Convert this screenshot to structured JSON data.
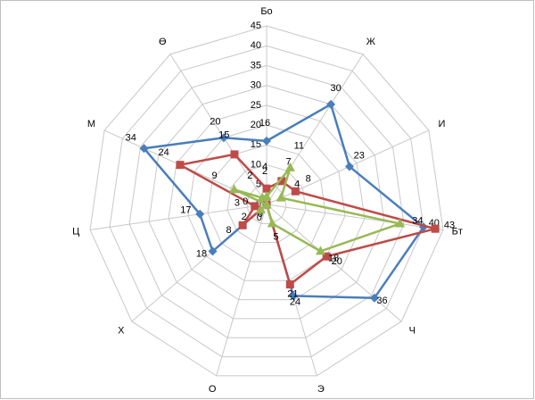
{
  "chart_data": {
    "type": "radar",
    "categories": [
      "Бо",
      "Ж",
      "И",
      "Бт",
      "Ч",
      "Э",
      "О",
      "Х",
      "Ц",
      "М",
      "Ө"
    ],
    "series": [
      {
        "color": "#4a7ebb",
        "marker": "diamond",
        "values": [
          16,
          30,
          23,
          40,
          36,
          24,
          0,
          18,
          17,
          34,
          20
        ]
      },
      {
        "color": "#be4b48",
        "marker": "square",
        "values": [
          4,
          7,
          8,
          43,
          20,
          21,
          0,
          8,
          3,
          24,
          15
        ]
      },
      {
        "color": "#98b954",
        "marker": "triangle",
        "values": [
          2,
          11,
          4,
          34,
          18,
          5,
          0,
          2,
          0,
          9,
          2
        ]
      }
    ],
    "ylim": [
      0,
      45
    ],
    "yticks": [
      0,
      5,
      10,
      15,
      20,
      25,
      30,
      35,
      40,
      45
    ],
    "grid": true
  }
}
